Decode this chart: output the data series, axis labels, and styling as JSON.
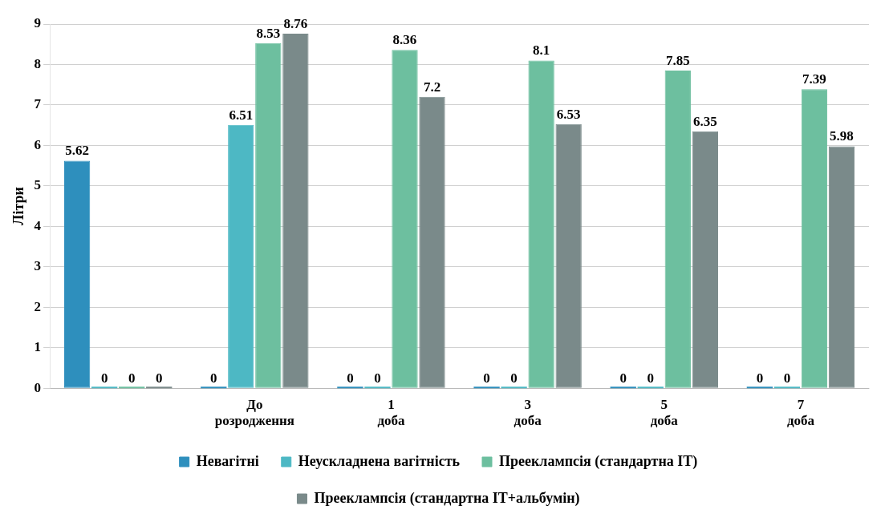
{
  "chart_data": {
    "type": "bar",
    "ylabel": "Літри",
    "categories": [
      null,
      "До розродження",
      "1 доба",
      "3 доба",
      "5 доба",
      "7 доба"
    ],
    "series": [
      {
        "name": "Невагітні",
        "color": "#2e8fbd",
        "values": [
          5.62,
          0,
          0,
          0,
          0,
          0
        ]
      },
      {
        "name": "Неускладнена вагітність",
        "color": "#4db8c4",
        "values": [
          0,
          6.51,
          0,
          0,
          0,
          0
        ]
      },
      {
        "name": "Прееклампсія (стандартна ІТ)",
        "color": "#6dbf9f",
        "values": [
          0,
          8.53,
          8.36,
          8.1,
          7.85,
          7.39
        ]
      },
      {
        "name": "Прееклампсія (стандартна ІТ+альбумін)",
        "color": "#7a8a8a",
        "values": [
          0,
          8.76,
          7.2,
          6.53,
          6.35,
          5.98
        ]
      }
    ],
    "ylim": [
      0,
      9
    ],
    "yticks": [
      0,
      1,
      2,
      3,
      4,
      5,
      6,
      7,
      8,
      9
    ],
    "grid": "y",
    "legend": "bottom",
    "data_labels": true
  }
}
